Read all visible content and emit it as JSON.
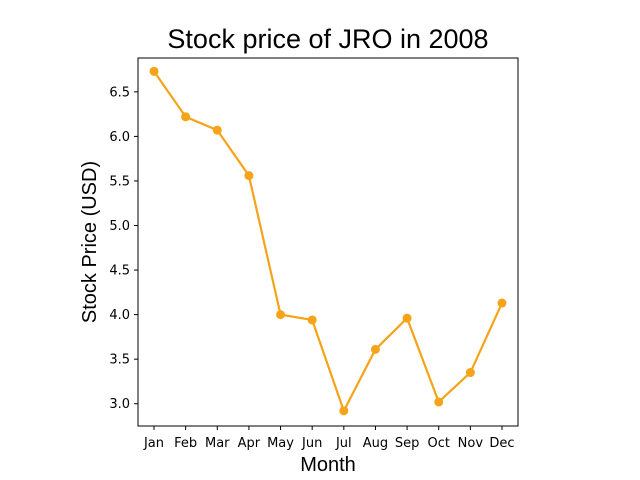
{
  "chart_data": {
    "type": "line",
    "title": "Stock price of JRO in 2008",
    "xlabel": "Month",
    "ylabel": "Stock Price (USD)",
    "categories": [
      "Jan",
      "Feb",
      "Mar",
      "Apr",
      "May",
      "Jun",
      "Jul",
      "Aug",
      "Sep",
      "Oct",
      "Nov",
      "Dec"
    ],
    "series": [
      {
        "values": [
          6.73,
          6.22,
          6.07,
          5.56,
          4.0,
          3.94,
          2.92,
          3.61,
          3.96,
          3.02,
          3.35,
          4.13
        ],
        "color": "#f5a319"
      }
    ],
    "ylim": [
      2.75,
      6.88
    ],
    "yticks": [
      3.0,
      3.5,
      4.0,
      4.5,
      5.0,
      5.5,
      6.0,
      6.5
    ],
    "ytick_labels": [
      "3.0",
      "3.5",
      "4.0",
      "4.5",
      "5.0",
      "5.5",
      "6.0",
      "6.5"
    ],
    "grid": false,
    "legend": "none"
  }
}
